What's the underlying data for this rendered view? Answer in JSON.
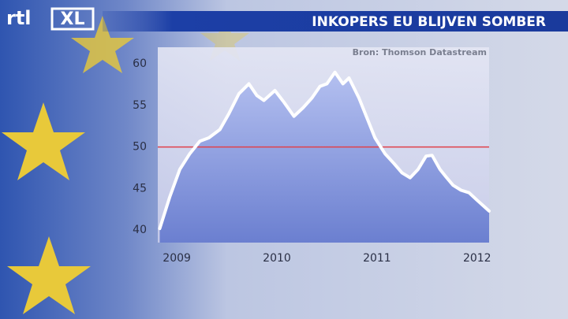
{
  "logo": {
    "brand": "rtl",
    "suffix": "XL"
  },
  "chart_data": {
    "type": "line",
    "title": "INKOPERS EU BLIJVEN SOMBER",
    "source": "Bron: Thomson Datastream",
    "x": [
      2008.83,
      2008.93,
      2009.03,
      2009.13,
      2009.23,
      2009.32,
      2009.43,
      2009.52,
      2009.62,
      2009.72,
      2009.8,
      2009.87,
      2009.98,
      2010.07,
      2010.17,
      2010.26,
      2010.35,
      2010.43,
      2010.5,
      2010.58,
      2010.66,
      2010.72,
      2010.82,
      2010.9,
      2010.98,
      2011.08,
      2011.17,
      2011.25,
      2011.33,
      2011.41,
      2011.49,
      2011.55,
      2011.63,
      2011.69,
      2011.76,
      2011.84,
      2011.92,
      2012.0,
      2012.12
    ],
    "series": [
      {
        "color": "#ffffff",
        "values": [
          40.2,
          44,
          47.3,
          49.2,
          50.7,
          51.1,
          52.1,
          54,
          56.4,
          57.6,
          56.2,
          55.6,
          56.8,
          55.4,
          53.7,
          54.7,
          55.9,
          57.3,
          57.6,
          59,
          57.6,
          58.3,
          55.9,
          53.5,
          51.1,
          49.2,
          48,
          46.9,
          46.3,
          47.3,
          48.9,
          49,
          47.3,
          46.4,
          45.4,
          44.8,
          44.5,
          43.6,
          42.3
        ]
      }
    ],
    "xlim": [
      2008.81,
      2012.12
    ],
    "xticks": [
      2009,
      2010,
      2011,
      2012
    ],
    "ylim": [
      38.5,
      62
    ],
    "yticks": [
      40,
      45,
      50,
      55,
      60
    ],
    "reference_line": 50,
    "reference_color": "#e0404a"
  }
}
